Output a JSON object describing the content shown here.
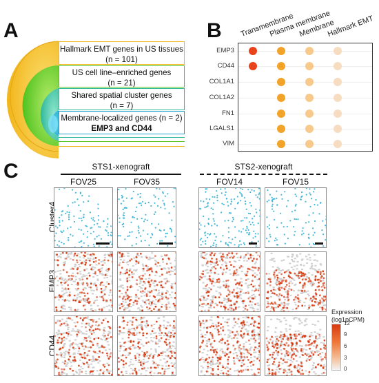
{
  "panel_a": {
    "letter": "A",
    "boxes": [
      {
        "line1": "Hallmark EMT genes in US tissues",
        "line2": "(n = 101)"
      },
      {
        "line1": "US cell line–enriched genes",
        "line2": "(n = 21)"
      },
      {
        "line1": "Shared spatial cluster genes",
        "line2": "(n = 7)"
      },
      {
        "line1": "Membrane-localized genes (n = 2)",
        "line2": "EMP3 and CD44"
      }
    ]
  },
  "panel_b": {
    "letter": "B",
    "columns": [
      "Transmembrane",
      "Plasma membrane",
      "Membrane",
      "Hallmark EMT"
    ],
    "rows": [
      "EMP3",
      "CD44",
      "COL1A1",
      "COL1A2",
      "FN1",
      "LGALS1",
      "VIM"
    ],
    "matrix": [
      [
        1,
        1,
        1,
        1
      ],
      [
        1,
        1,
        1,
        1
      ],
      [
        0,
        1,
        1,
        1
      ],
      [
        0,
        1,
        1,
        1
      ],
      [
        0,
        1,
        1,
        1
      ],
      [
        0,
        1,
        1,
        1
      ],
      [
        0,
        1,
        1,
        1
      ]
    ],
    "column_colors": [
      "#e8431a",
      "#f2a32a",
      "#f7c98a",
      "#f6dcc0"
    ]
  },
  "panel_c": {
    "letter": "C",
    "groups": [
      {
        "title": "STS1-xenograft",
        "line": "solid",
        "fovs": [
          "FOV25",
          "FOV35"
        ]
      },
      {
        "title": "STS2-xenograft",
        "line": "dashed",
        "fovs": [
          "FOV14",
          "FOV15"
        ]
      }
    ],
    "rows": [
      "Cluster4",
      "EMP3",
      "CD44"
    ],
    "legend": {
      "title_line1": "Expression",
      "title_line2": "(log1pCPM)",
      "ticks": [
        "12",
        "9",
        "6",
        "3",
        "0"
      ],
      "color_high": "#d93a10",
      "color_low": "#f3f3f3"
    },
    "cluster_color": "#3bb3d6",
    "background_color": "#cfcfcf"
  }
}
